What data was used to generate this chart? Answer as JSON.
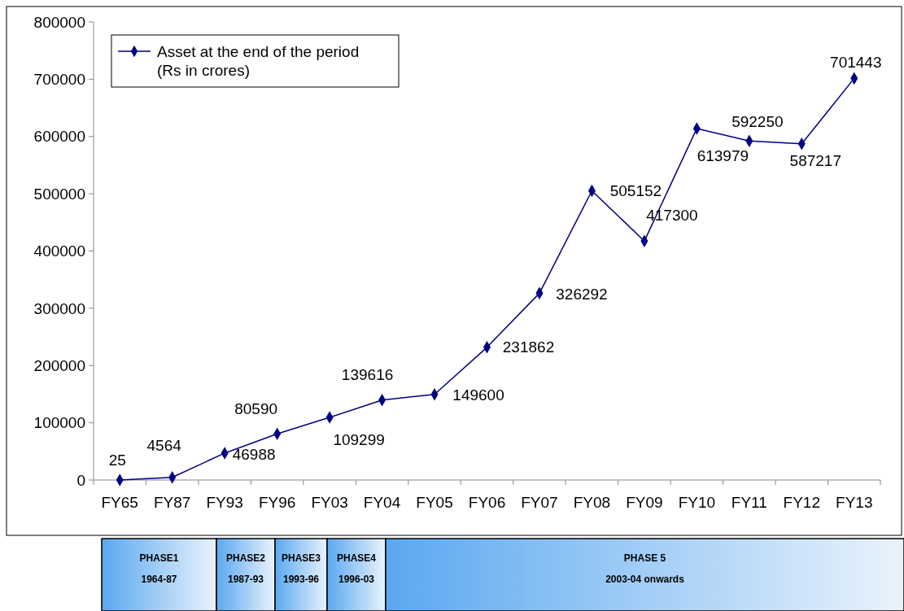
{
  "chart_data": {
    "type": "line",
    "categories": [
      "FY65",
      "FY87",
      "FY93",
      "FY96",
      "FY03",
      "FY04",
      "FY05",
      "FY06",
      "FY07",
      "FY08",
      "FY09",
      "FY10",
      "FY11",
      "FY12",
      "FY13"
    ],
    "series": [
      {
        "name": "Asset at the end of the period\n(Rs in crores)",
        "color": "#000080",
        "values": [
          25,
          4564,
          46988,
          80590,
          109299,
          139616,
          149600,
          231862,
          326292,
          505152,
          417300,
          613979,
          592250,
          587217,
          701443
        ]
      }
    ],
    "ylim": [
      0,
      800000
    ],
    "yticks": [
      0,
      100000,
      200000,
      300000,
      400000,
      500000,
      600000,
      700000,
      800000
    ],
    "data_labels": true,
    "marker": "diamond",
    "legend": "top left",
    "grid": false,
    "annotations": [
      "PHASE1",
      "1964-87",
      "PHASE2",
      "1987-93",
      "PHASE3",
      "1993-96",
      "PHASE4",
      "1996-03",
      "PHASE 5",
      "2003-04 onwards"
    ]
  }
}
